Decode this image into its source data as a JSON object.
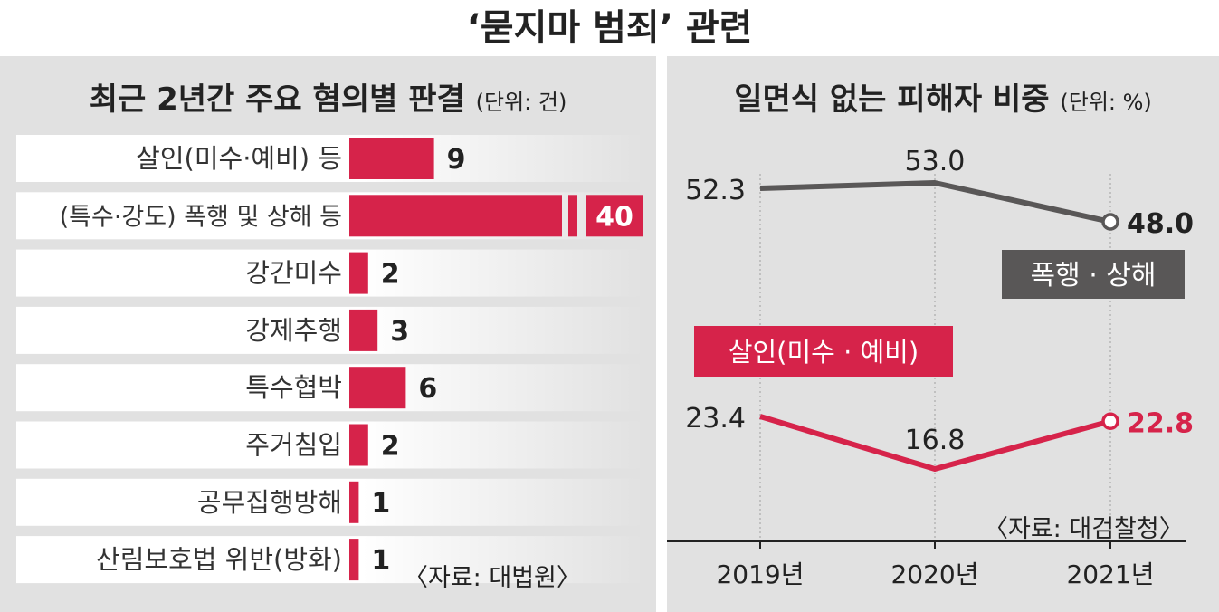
{
  "title": "‘묻지마 범죄’ 관련",
  "colors": {
    "accent": "#d6234a",
    "dark": "#595757",
    "panel": "#e1e1e1"
  },
  "left": {
    "subtitle": "최근 2년간 주요 혐의별 판결",
    "unit": "(단위: 건)",
    "source": "〈자료: 대법원〉"
  },
  "right": {
    "subtitle": "일면식 없는 피해자 비중",
    "unit": "(단위: %)",
    "source": "〈자료: 대검찰청〉"
  },
  "chart_data": [
    {
      "type": "bar",
      "orientation": "horizontal",
      "title": "최근 2년간 주요 혐의별 판결",
      "unit": "건",
      "categories": [
        "살인(미수·예비)  등",
        "(특수·강도) 폭행 및 상해 등",
        "강간미수",
        "강제추행",
        "특수협박",
        "주거침입",
        "공무집행방해",
        "산림보호법 위반(방화)"
      ],
      "values": [
        9,
        40,
        2,
        3,
        6,
        2,
        1,
        1
      ],
      "axis_break": true
    },
    {
      "type": "line",
      "title": "일면식 없는 피해자 비중",
      "unit": "%",
      "x": [
        "2019년",
        "2020년",
        "2021년"
      ],
      "series": [
        {
          "name": "폭행 · 상해",
          "values": [
            52.3,
            53.0,
            48.0
          ],
          "color": "#595757"
        },
        {
          "name": "살인(미수 · 예비)",
          "values": [
            23.4,
            16.8,
            22.8
          ],
          "color": "#d6234a"
        }
      ]
    }
  ]
}
